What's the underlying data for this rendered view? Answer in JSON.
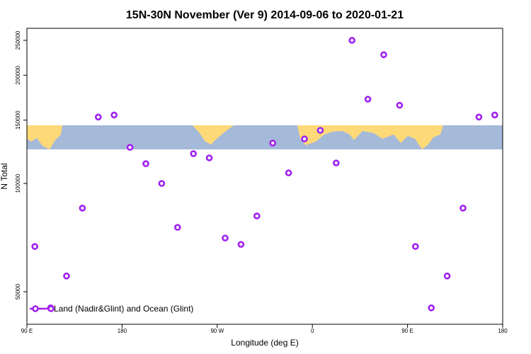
{
  "chart_data": {
    "type": "scatter",
    "title": "15N-30N November (Ver 9)   2014-09-06 to 2020-01-21",
    "x_label": "Longitude (deg E)",
    "y_label": "N Total",
    "log_y": true,
    "legend_corner": "bottom left",
    "xlim": [
      90,
      540
    ],
    "xticks": [
      {
        "value": 90,
        "label": "90 E"
      },
      180,
      {
        "value": 270,
        "label": "90 W"
      },
      {
        "value": 360,
        "label": "0"
      },
      {
        "value": 450,
        "label": "90 E"
      },
      {
        "value": 540,
        "label": "180"
      }
    ],
    "ylim": [
      40600,
      270000
    ],
    "yticks": [
      50000,
      100000,
      150000,
      200000,
      250000
    ],
    "series": [
      {
        "name": "Land (Nadir&Glint) and Ocean (Glint)",
        "color": "#a020f0",
        "x": [
          97.5,
          112.5,
          127.5,
          142.5,
          157.5,
          172.5,
          187.5,
          202.5,
          217.5,
          232.5,
          247.5,
          262.5,
          277.5,
          292.5,
          307.5,
          322.5,
          337.5,
          352.5,
          367.5,
          382.5,
          397.5,
          412.5,
          427.5,
          442.5,
          457.5,
          472.5,
          487.5,
          502.5,
          517.5,
          532.5
        ],
        "values": [
          66800,
          45100,
          55300,
          85400,
          153000,
          155000,
          126000,
          113500,
          100000,
          75500,
          121000,
          117800,
          70500,
          67700,
          81200,
          129500,
          107000,
          133000,
          140500,
          114000,
          250000,
          171500,
          228000,
          165000,
          66800,
          45100,
          55300,
          85400,
          153000,
          155000
        ]
      }
    ]
  }
}
